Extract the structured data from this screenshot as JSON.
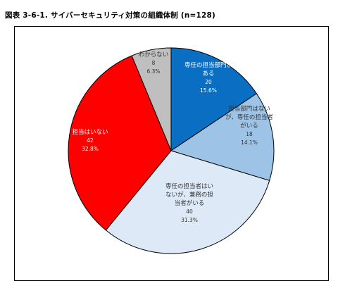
{
  "title": "図表 3-6-1. サイバーセキュリティ対策の組織体制 (n=128)",
  "chart_data": {
    "type": "pie",
    "title": "図表 3-6-1. サイバーセキュリティ対策の組織体制 (n=128)",
    "n": 128,
    "start_angle_deg": 0,
    "direction": "clockwise",
    "slices": [
      {
        "label": "専任の担当部門がある",
        "label_lines": [
          "専任の担当部門が",
          "ある"
        ],
        "value": 20,
        "percent": "15.6%",
        "color": "#0a6fc2",
        "text_color": "#ffffff"
      },
      {
        "label": "担当部門はないが、専任の担当者がいる",
        "label_lines": [
          "担当部門はない",
          "が、専任の担当者",
          "がいる"
        ],
        "value": 18,
        "percent": "14.1%",
        "color": "#9dc3e6",
        "text_color": "#333333"
      },
      {
        "label": "専任の担当者はいないが、兼務の担当者がいる",
        "label_lines": [
          "専任の担当者はい",
          "ないが、兼務の担",
          "当者がいる"
        ],
        "value": 40,
        "percent": "31.3%",
        "color": "#dde9f6",
        "text_color": "#333333"
      },
      {
        "label": "担当はいない",
        "label_lines": [
          "担当はいない"
        ],
        "value": 42,
        "percent": "32.8%",
        "color": "#ff0000",
        "text_color": "#ffffff"
      },
      {
        "label": "わからない",
        "label_lines": [
          "わからない"
        ],
        "value": 8,
        "percent": "6.3%",
        "color": "#bfbfbf",
        "text_color": "#333333"
      }
    ]
  }
}
